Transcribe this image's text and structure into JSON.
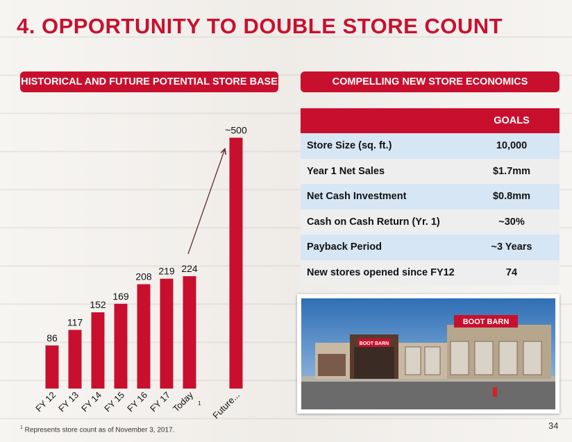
{
  "slide": {
    "title": "4. OPPORTUNITY TO DOUBLE STORE COUNT",
    "page_number": "34"
  },
  "left_section": {
    "header": "HISTORICAL AND FUTURE POTENTIAL STORE BASE"
  },
  "right_section": {
    "header": "COMPELLING NEW STORE ECONOMICS"
  },
  "chart_data": {
    "type": "bar",
    "categories": [
      "FY 12",
      "FY 13",
      "FY 14",
      "FY 15",
      "FY 16",
      "FY 17",
      "Today",
      "Future..."
    ],
    "values": [
      86,
      117,
      152,
      169,
      208,
      219,
      224,
      500
    ],
    "data_labels": [
      "86",
      "117",
      "152",
      "169",
      "208",
      "219",
      "224",
      "~500"
    ],
    "category_superscripts": [
      "",
      "",
      "",
      "",
      "",
      "",
      "1",
      ""
    ],
    "title": "",
    "xlabel": "",
    "ylabel": "",
    "ylim": [
      0,
      520
    ],
    "grid": false,
    "bar_color": "#c8102e",
    "annotation": "arrow from Today bar to Future bar"
  },
  "economics_table": {
    "header": [
      "",
      "GOALS"
    ],
    "rows": [
      {
        "label": "Store Size (sq. ft.)",
        "value": "10,000"
      },
      {
        "label": "Year 1 Net Sales",
        "value": "$1.7mm"
      },
      {
        "label": "Net Cash Investment",
        "value": "$0.8mm"
      },
      {
        "label": "Cash on Cash Return (Yr. 1)",
        "value": "~30%"
      },
      {
        "label": "Payback Period",
        "value": "~3 Years"
      },
      {
        "label": "New stores opened since FY12",
        "value": "74"
      }
    ]
  },
  "photo": {
    "sign_text": "BOOT BARN",
    "entrance_sign_text": "BOOT BARN"
  },
  "footnote": {
    "marker": "1",
    "text": " Represents store count as of November 3, 2017."
  },
  "colors": {
    "accent": "#c8102e",
    "row_light": "#d7e6f5",
    "row_plain": "#eeeeee"
  }
}
